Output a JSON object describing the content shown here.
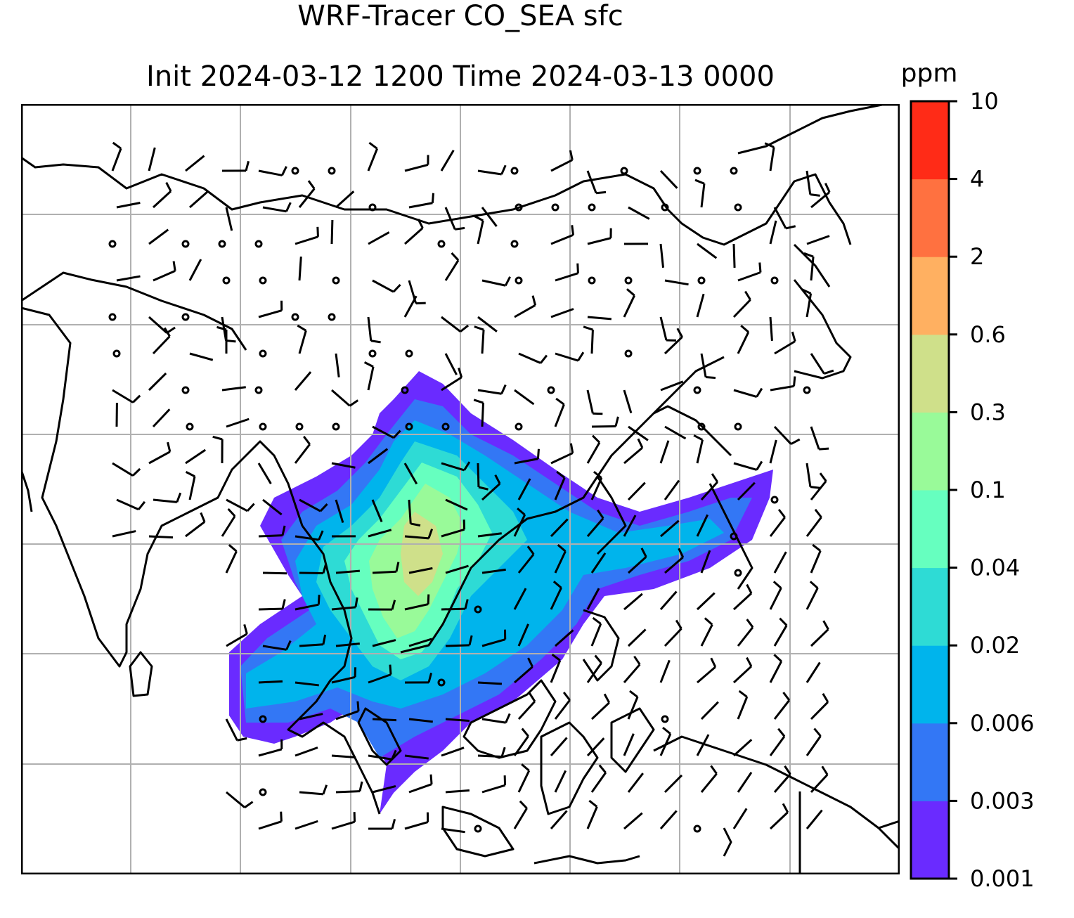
{
  "map": {
    "title_line1": "WRF-Tracer CO_SEA sfc",
    "title_line2": "Init 2024-03-12 1200 Time 2024-03-13 0000",
    "gridlines": true,
    "colorbar": {
      "unit": "ppm",
      "levels": [
        "0.001",
        "0.003",
        "0.006",
        "0.02",
        "0.04",
        "0.1",
        "0.3",
        "0.6",
        "2",
        "4",
        "10"
      ],
      "colors": [
        "#6a2bff",
        "#3377f5",
        "#00b4ec",
        "#2edbd5",
        "#66ffbf",
        "#99fa99",
        "#cfe08a",
        "#ffb061",
        "#ff7140",
        "#ff2b17"
      ]
    }
  }
}
